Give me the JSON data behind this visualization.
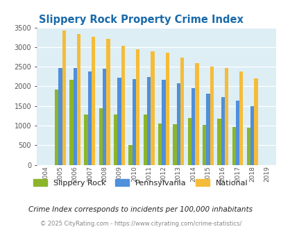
{
  "title": "Slippery Rock Property Crime Index",
  "years": [
    2004,
    2005,
    2006,
    2007,
    2008,
    2009,
    2010,
    2011,
    2012,
    2013,
    2014,
    2015,
    2016,
    2017,
    2018,
    2019
  ],
  "slippery_rock": [
    null,
    1920,
    2175,
    1275,
    1450,
    1275,
    500,
    1290,
    1050,
    1030,
    1200,
    1010,
    1185,
    965,
    950,
    null
  ],
  "pennsylvania": [
    null,
    2460,
    2475,
    2375,
    2445,
    2215,
    2185,
    2240,
    2165,
    2075,
    1950,
    1810,
    1720,
    1640,
    1490,
    null
  ],
  "national": [
    null,
    3430,
    3340,
    3270,
    3215,
    3040,
    2950,
    2900,
    2855,
    2725,
    2595,
    2500,
    2465,
    2380,
    2200,
    null
  ],
  "sr_color": "#8db52a",
  "pa_color": "#4f8fdb",
  "nat_color": "#f5bc3a",
  "bg_color": "#ddeef5",
  "title_color": "#1a6aaa",
  "ylabel_max": 3500,
  "yticks": [
    0,
    500,
    1000,
    1500,
    2000,
    2500,
    3000,
    3500
  ],
  "subtitle": "Crime Index corresponds to incidents per 100,000 inhabitants",
  "footer": "© 2025 CityRating.com - https://www.cityrating.com/crime-statistics/",
  "legend_labels": [
    "Slippery Rock",
    "Pennsylvania",
    "National"
  ]
}
